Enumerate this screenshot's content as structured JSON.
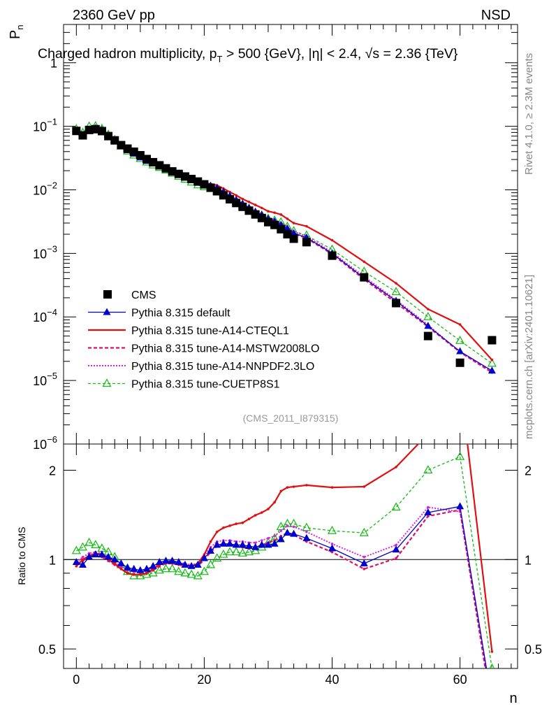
{
  "header": {
    "left": "2360 GeV pp",
    "right": "NSD"
  },
  "title": "Charged hadron multiplicity, p",
  "title_sub": "T",
  "title_rest": " > 500 {GeV}, |η| < 2.4, √s = 2.36 {TeV}",
  "side_text_top": "Rivet 4.1.0, ≥ 2.3M events",
  "side_text_bottom": "mcplots.cern.ch [arXiv:2401.10621]",
  "analysis_id": "(CMS_2011_I879315)",
  "ylabel_main": "P",
  "ylabel_main_sub": "n",
  "ylabel_ratio": "Ratio to CMS",
  "xlabel": "n",
  "chart_data": {
    "type": "scatter",
    "x_range": [
      -2,
      69
    ],
    "main": {
      "yscale": "log",
      "ylim": [
        1e-06,
        4
      ],
      "ytick_labels": [
        {
          "value": 1e-06,
          "base": "10",
          "exp": "−6"
        },
        {
          "value": 1e-05,
          "base": "10",
          "exp": "−5"
        },
        {
          "value": 0.0001,
          "base": "10",
          "exp": "−4"
        },
        {
          "value": 0.001,
          "base": "10",
          "exp": "−3"
        },
        {
          "value": 0.01,
          "base": "10",
          "exp": "−2"
        },
        {
          "value": 0.1,
          "base": "10",
          "exp": "−1"
        },
        {
          "value": 1,
          "base": "1",
          "exp": ""
        }
      ]
    },
    "ratio": {
      "yscale": "log",
      "ylim": [
        0.43,
        2.45
      ],
      "ytick_labels": [
        {
          "value": 0.5,
          "label": "0.5"
        },
        {
          "value": 1,
          "label": "1"
        },
        {
          "value": 2,
          "label": "2"
        }
      ]
    },
    "xticks": [
      0,
      20,
      40,
      60
    ],
    "reference": {
      "name": "CMS",
      "x": [
        0,
        1,
        2,
        3,
        4,
        5,
        6,
        7,
        8,
        9,
        10,
        11,
        12,
        13,
        14,
        15,
        16,
        17,
        18,
        19,
        20,
        21,
        22,
        23,
        24,
        25,
        26,
        27,
        28,
        29,
        30,
        31,
        32,
        33,
        34,
        36,
        40,
        45,
        50,
        55,
        60,
        65
      ],
      "y": [
        0.0845,
        0.072,
        0.0875,
        0.09,
        0.084,
        0.07,
        0.06,
        0.0505,
        0.0445,
        0.0398,
        0.035,
        0.0305,
        0.0272,
        0.0243,
        0.0218,
        0.0195,
        0.0178,
        0.0162,
        0.0148,
        0.0135,
        0.0122,
        0.0108,
        0.0095,
        0.0082,
        0.0071,
        0.0062,
        0.0054,
        0.0047,
        0.0041,
        0.0036,
        0.0031,
        0.0028,
        0.0024,
        0.002,
        0.0017,
        0.0015,
        0.00092,
        0.00042,
        0.000165,
        5e-05,
        1.9e-05,
        4.3e-05
      ]
    },
    "series": [
      {
        "name": "Pythia 8.315 default",
        "color": "#0000cc",
        "dash": "",
        "marker": "triangle-filled",
        "stroke_width": 1.3,
        "x": [
          0,
          1,
          2,
          3,
          4,
          5,
          6,
          7,
          8,
          9,
          10,
          11,
          12,
          13,
          14,
          15,
          16,
          17,
          18,
          19,
          20,
          21,
          22,
          23,
          24,
          25,
          26,
          27,
          28,
          29,
          30,
          31,
          32,
          33,
          34,
          36,
          40,
          45,
          50,
          55,
          60,
          65
        ],
        "ratio": [
          0.98,
          0.96,
          1.02,
          1.04,
          1.04,
          1.02,
          1.0,
          0.97,
          0.94,
          0.93,
          0.92,
          0.93,
          0.95,
          0.98,
          0.99,
          0.99,
          0.98,
          0.96,
          0.95,
          0.96,
          1.01,
          1.07,
          1.12,
          1.13,
          1.13,
          1.12,
          1.12,
          1.11,
          1.1,
          1.12,
          1.12,
          1.13,
          1.17,
          1.23,
          1.22,
          1.18,
          1.09,
          0.97,
          1.08,
          1.44,
          1.51,
          0.33
        ]
      },
      {
        "name": "Pythia 8.315 tune-A14-CTEQL1",
        "color": "#e01010",
        "dash": "",
        "marker": "dot",
        "stroke_width": 2.2,
        "x": [
          0,
          1,
          2,
          3,
          4,
          5,
          6,
          7,
          8,
          9,
          10,
          11,
          12,
          13,
          14,
          15,
          16,
          17,
          18,
          19,
          20,
          21,
          22,
          23,
          24,
          25,
          26,
          27,
          28,
          29,
          30,
          31,
          32,
          33,
          34,
          36,
          40,
          45,
          50,
          55,
          60,
          65
        ],
        "ratio": [
          0.95,
          1.0,
          1.03,
          1.05,
          1.04,
          1.0,
          0.97,
          0.93,
          0.9,
          0.89,
          0.89,
          0.9,
          0.93,
          0.96,
          0.98,
          0.98,
          0.97,
          0.96,
          0.95,
          0.97,
          1.04,
          1.15,
          1.24,
          1.28,
          1.3,
          1.32,
          1.33,
          1.37,
          1.41,
          1.44,
          1.48,
          1.56,
          1.7,
          1.75,
          1.76,
          1.78,
          1.75,
          1.76,
          2.05,
          2.65,
          4.0,
          0.49
        ]
      },
      {
        "name": "Pythia 8.315 tune-A14-MSTW2008LO",
        "color": "#e0106a",
        "dash": "5,3",
        "marker": "dot",
        "stroke_width": 2.2,
        "x": [
          0,
          1,
          2,
          3,
          4,
          5,
          6,
          7,
          8,
          9,
          10,
          11,
          12,
          13,
          14,
          15,
          16,
          17,
          18,
          19,
          20,
          21,
          22,
          23,
          24,
          25,
          26,
          27,
          28,
          29,
          30,
          31,
          32,
          33,
          34,
          36,
          40,
          45,
          50,
          55,
          60,
          65
        ],
        "ratio": [
          0.97,
          0.99,
          1.02,
          1.03,
          1.02,
          0.99,
          0.96,
          0.93,
          0.9,
          0.89,
          0.89,
          0.9,
          0.92,
          0.95,
          0.97,
          0.97,
          0.96,
          0.95,
          0.94,
          0.95,
          1.0,
          1.06,
          1.11,
          1.12,
          1.12,
          1.11,
          1.1,
          1.09,
          1.1,
          1.12,
          1.14,
          1.16,
          1.2,
          1.23,
          1.21,
          1.15,
          1.06,
          0.93,
          1.01,
          1.4,
          1.47,
          0.31
        ]
      },
      {
        "name": "Pythia 8.315 tune-A14-NNPDF2.3LO",
        "color": "#dd22dd",
        "dash": "2,2",
        "marker": "dot",
        "stroke_width": 2.0,
        "x": [
          0,
          1,
          2,
          3,
          4,
          5,
          6,
          7,
          8,
          9,
          10,
          11,
          12,
          13,
          14,
          15,
          16,
          17,
          18,
          19,
          20,
          21,
          22,
          23,
          24,
          25,
          26,
          27,
          28,
          29,
          30,
          31,
          32,
          33,
          34,
          36,
          40,
          45,
          50,
          55,
          60,
          65
        ],
        "ratio": [
          0.98,
          1.02,
          1.05,
          1.06,
          1.05,
          1.02,
          0.98,
          0.95,
          0.92,
          0.91,
          0.91,
          0.92,
          0.94,
          0.97,
          0.99,
          0.99,
          0.98,
          0.97,
          0.96,
          0.97,
          1.03,
          1.1,
          1.15,
          1.16,
          1.16,
          1.15,
          1.15,
          1.14,
          1.14,
          1.16,
          1.18,
          1.2,
          1.25,
          1.3,
          1.29,
          1.24,
          1.13,
          1.02,
          1.12,
          1.5,
          1.45,
          0.33
        ]
      },
      {
        "name": "Pythia 8.315 tune-CUETP8S1",
        "color": "#11bb11",
        "dash": "4,3",
        "marker": "triangle-open",
        "stroke_width": 1.3,
        "x": [
          0,
          1,
          2,
          3,
          4,
          5,
          6,
          7,
          8,
          9,
          10,
          11,
          12,
          13,
          14,
          15,
          16,
          17,
          18,
          19,
          20,
          21,
          22,
          23,
          24,
          25,
          26,
          27,
          28,
          29,
          30,
          31,
          32,
          33,
          34,
          36,
          40,
          45,
          50,
          55,
          60,
          65
        ],
        "ratio": [
          1.07,
          1.1,
          1.14,
          1.12,
          1.09,
          1.06,
          1.02,
          0.96,
          0.91,
          0.88,
          0.88,
          0.89,
          0.9,
          0.92,
          0.93,
          0.93,
          0.91,
          0.9,
          0.89,
          0.88,
          0.91,
          0.96,
          1.01,
          1.04,
          1.06,
          1.06,
          1.05,
          1.06,
          1.07,
          1.1,
          1.14,
          1.18,
          1.29,
          1.32,
          1.32,
          1.28,
          1.25,
          1.23,
          1.5,
          2.0,
          2.22,
          0.43
        ]
      }
    ]
  }
}
